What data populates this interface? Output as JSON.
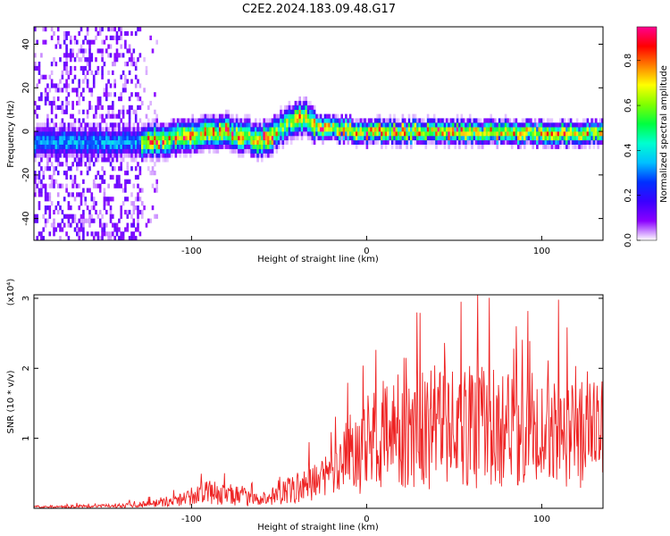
{
  "title": "C2E2.2024.183.09.48.G17",
  "chart_data": [
    {
      "type": "heatmap",
      "xlabel": "Height of straight line (km)",
      "ylabel": "Frequency (Hz)",
      "xlim": [
        -190,
        135
      ],
      "ylim": [
        -50,
        48
      ],
      "xticks": [
        -100,
        0,
        100
      ],
      "yticks": [
        -40,
        -20,
        0,
        20,
        40
      ],
      "colorbar": {
        "label": "Normalized spectral amplitude",
        "range": [
          0.0,
          0.95
        ],
        "ticks": [
          0.0,
          0.2,
          0.4,
          0.6,
          0.8
        ],
        "colormap": [
          "#ffffff",
          "#8a00ff",
          "#3a00ff",
          "#0030ff",
          "#00c0ff",
          "#00ffd0",
          "#00ff40",
          "#80ff00",
          "#ffff00",
          "#ff8000",
          "#ff0000",
          "#ff0090"
        ]
      },
      "ridge": {
        "description_points_x": [
          -140,
          -120,
          -100,
          -80,
          -60,
          -45,
          -35,
          -30,
          -20,
          0,
          50,
          100,
          130
        ],
        "description_points_y": [
          -6,
          -5,
          -3,
          -1,
          -5,
          3,
          6,
          1,
          0,
          -1,
          -1,
          -2,
          -2
        ]
      },
      "noise_region_x": [
        -190,
        -130
      ]
    },
    {
      "type": "line",
      "xlabel": "Height of straight line (km)",
      "ylabel": "SNR (10 * v/v)",
      "yscale_label": "(x10⁴)",
      "xlim": [
        -190,
        135
      ],
      "ylim": [
        0,
        3.05
      ],
      "xticks": [
        -100,
        0,
        100
      ],
      "yticks": [
        1,
        2,
        3
      ],
      "color": "#ee2222",
      "envelope": {
        "x": [
          -190,
          -150,
          -130,
          -110,
          -100,
          -90,
          -80,
          -60,
          -50,
          -40,
          -30,
          -20,
          -10,
          0,
          20,
          40,
          60,
          80,
          100,
          120,
          135
        ],
        "y": [
          0.03,
          0.05,
          0.08,
          0.15,
          0.25,
          0.35,
          0.3,
          0.2,
          0.3,
          0.45,
          0.55,
          0.8,
          1.2,
          1.4,
          1.6,
          1.8,
          1.8,
          1.7,
          1.7,
          1.6,
          1.6
        ]
      }
    }
  ]
}
